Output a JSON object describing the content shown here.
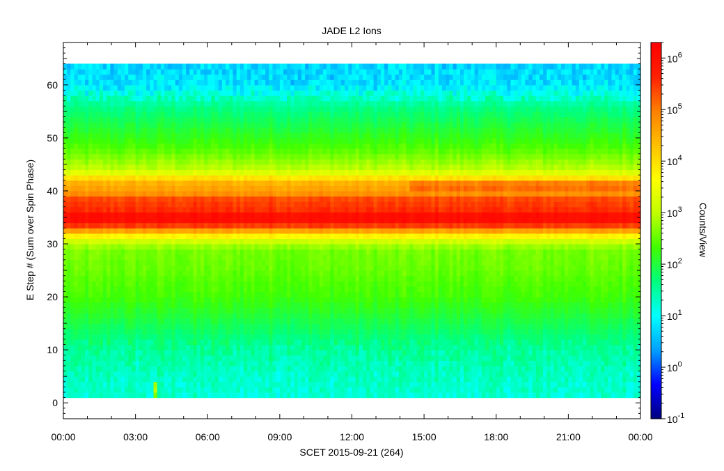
{
  "chart_data": {
    "type": "heatmap",
    "title": "JADE L2 Ions",
    "xlabel": "SCET 2015-09-21 (264)",
    "ylabel": "E Step # (Sum over Spin Phase)",
    "colorbar_label": "Counts/View",
    "x_ticks": [
      "00:00",
      "03:00",
      "06:00",
      "09:00",
      "12:00",
      "15:00",
      "18:00",
      "21:00",
      "00:00"
    ],
    "xlim_hours": [
      0,
      24
    ],
    "ylim": [
      -3,
      68
    ],
    "y_ticks": [
      0,
      10,
      20,
      30,
      40,
      50,
      60
    ],
    "data_y_range": [
      1,
      64
    ],
    "colorbar": {
      "scale": "log",
      "range": [
        0.1,
        2000000
      ],
      "tick_base": "10",
      "tick_exponents": [
        "-1",
        "0",
        "1",
        "2",
        "3",
        "4",
        "5",
        "6"
      ],
      "colors": [
        "#00007f",
        "#0000ff",
        "#00a0ff",
        "#00ffff",
        "#00ff80",
        "#40ff00",
        "#c0ff00",
        "#ffff00",
        "#ffc000",
        "#ff7f00",
        "#ff2000",
        "#ff0000"
      ]
    },
    "profile_log10_counts_by_estep": [
      [
        1,
        1.2
      ],
      [
        5,
        1.3
      ],
      [
        10,
        1.5
      ],
      [
        15,
        1.9
      ],
      [
        20,
        2.3
      ],
      [
        25,
        2.5
      ],
      [
        29,
        2.6
      ],
      [
        31,
        3.3
      ],
      [
        32,
        4.2
      ],
      [
        33,
        5.0
      ],
      [
        34,
        5.9
      ],
      [
        35,
        6.1
      ],
      [
        36,
        5.9
      ],
      [
        37,
        5.2
      ],
      [
        38,
        5.7
      ],
      [
        39,
        5.0
      ],
      [
        40,
        4.6
      ],
      [
        41,
        4.6
      ],
      [
        42,
        4.3
      ],
      [
        43,
        3.6
      ],
      [
        44,
        3.0
      ],
      [
        48,
        2.4
      ],
      [
        52,
        2.0
      ],
      [
        56,
        1.6
      ],
      [
        58,
        1.2
      ],
      [
        60,
        0.8
      ],
      [
        64,
        0.7
      ]
    ],
    "notable_features": [
      {
        "label": "enhanced band E 40-42",
        "hours": [
          14.4,
          24
        ]
      },
      {
        "label": "spike E 1-4",
        "hours": [
          3.75,
          3.95
        ]
      }
    ]
  }
}
